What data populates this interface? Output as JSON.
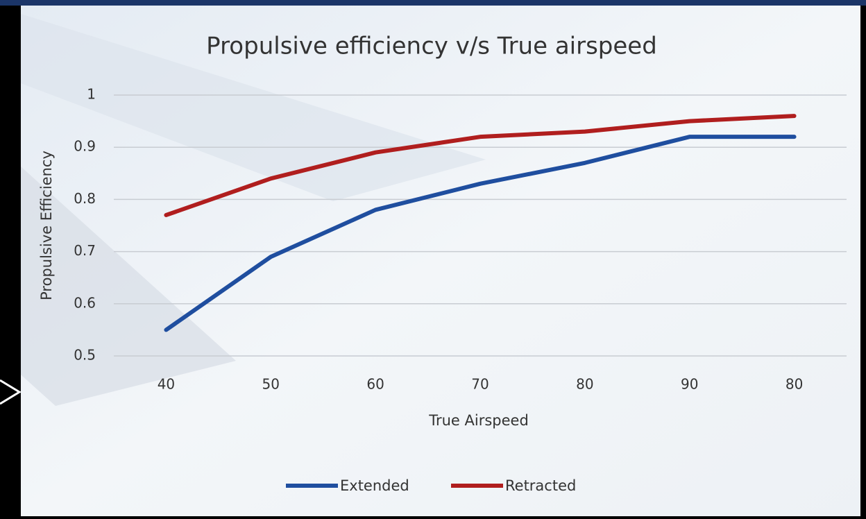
{
  "chart_data": {
    "type": "line",
    "title": "Propulsive efficiency v/s True airspeed",
    "x_label": "True Airspeed",
    "y_label": "Propulsive Efficiency",
    "categories": [
      "40",
      "50",
      "60",
      "70",
      "80",
      "90",
      "80"
    ],
    "series": [
      {
        "name": "Extended",
        "color": "#1f4e9f",
        "values": [
          0.55,
          0.69,
          0.78,
          0.83,
          0.87,
          0.92,
          0.92
        ]
      },
      {
        "name": "Retracted",
        "color": "#b01e1e",
        "values": [
          0.77,
          0.84,
          0.89,
          0.92,
          0.93,
          0.95,
          0.96
        ]
      }
    ],
    "ylim": [
      0.5,
      1
    ],
    "yticks": [
      0.5,
      0.6,
      0.7,
      0.8,
      0.9,
      1
    ],
    "grid": true,
    "legend": "bottom"
  }
}
